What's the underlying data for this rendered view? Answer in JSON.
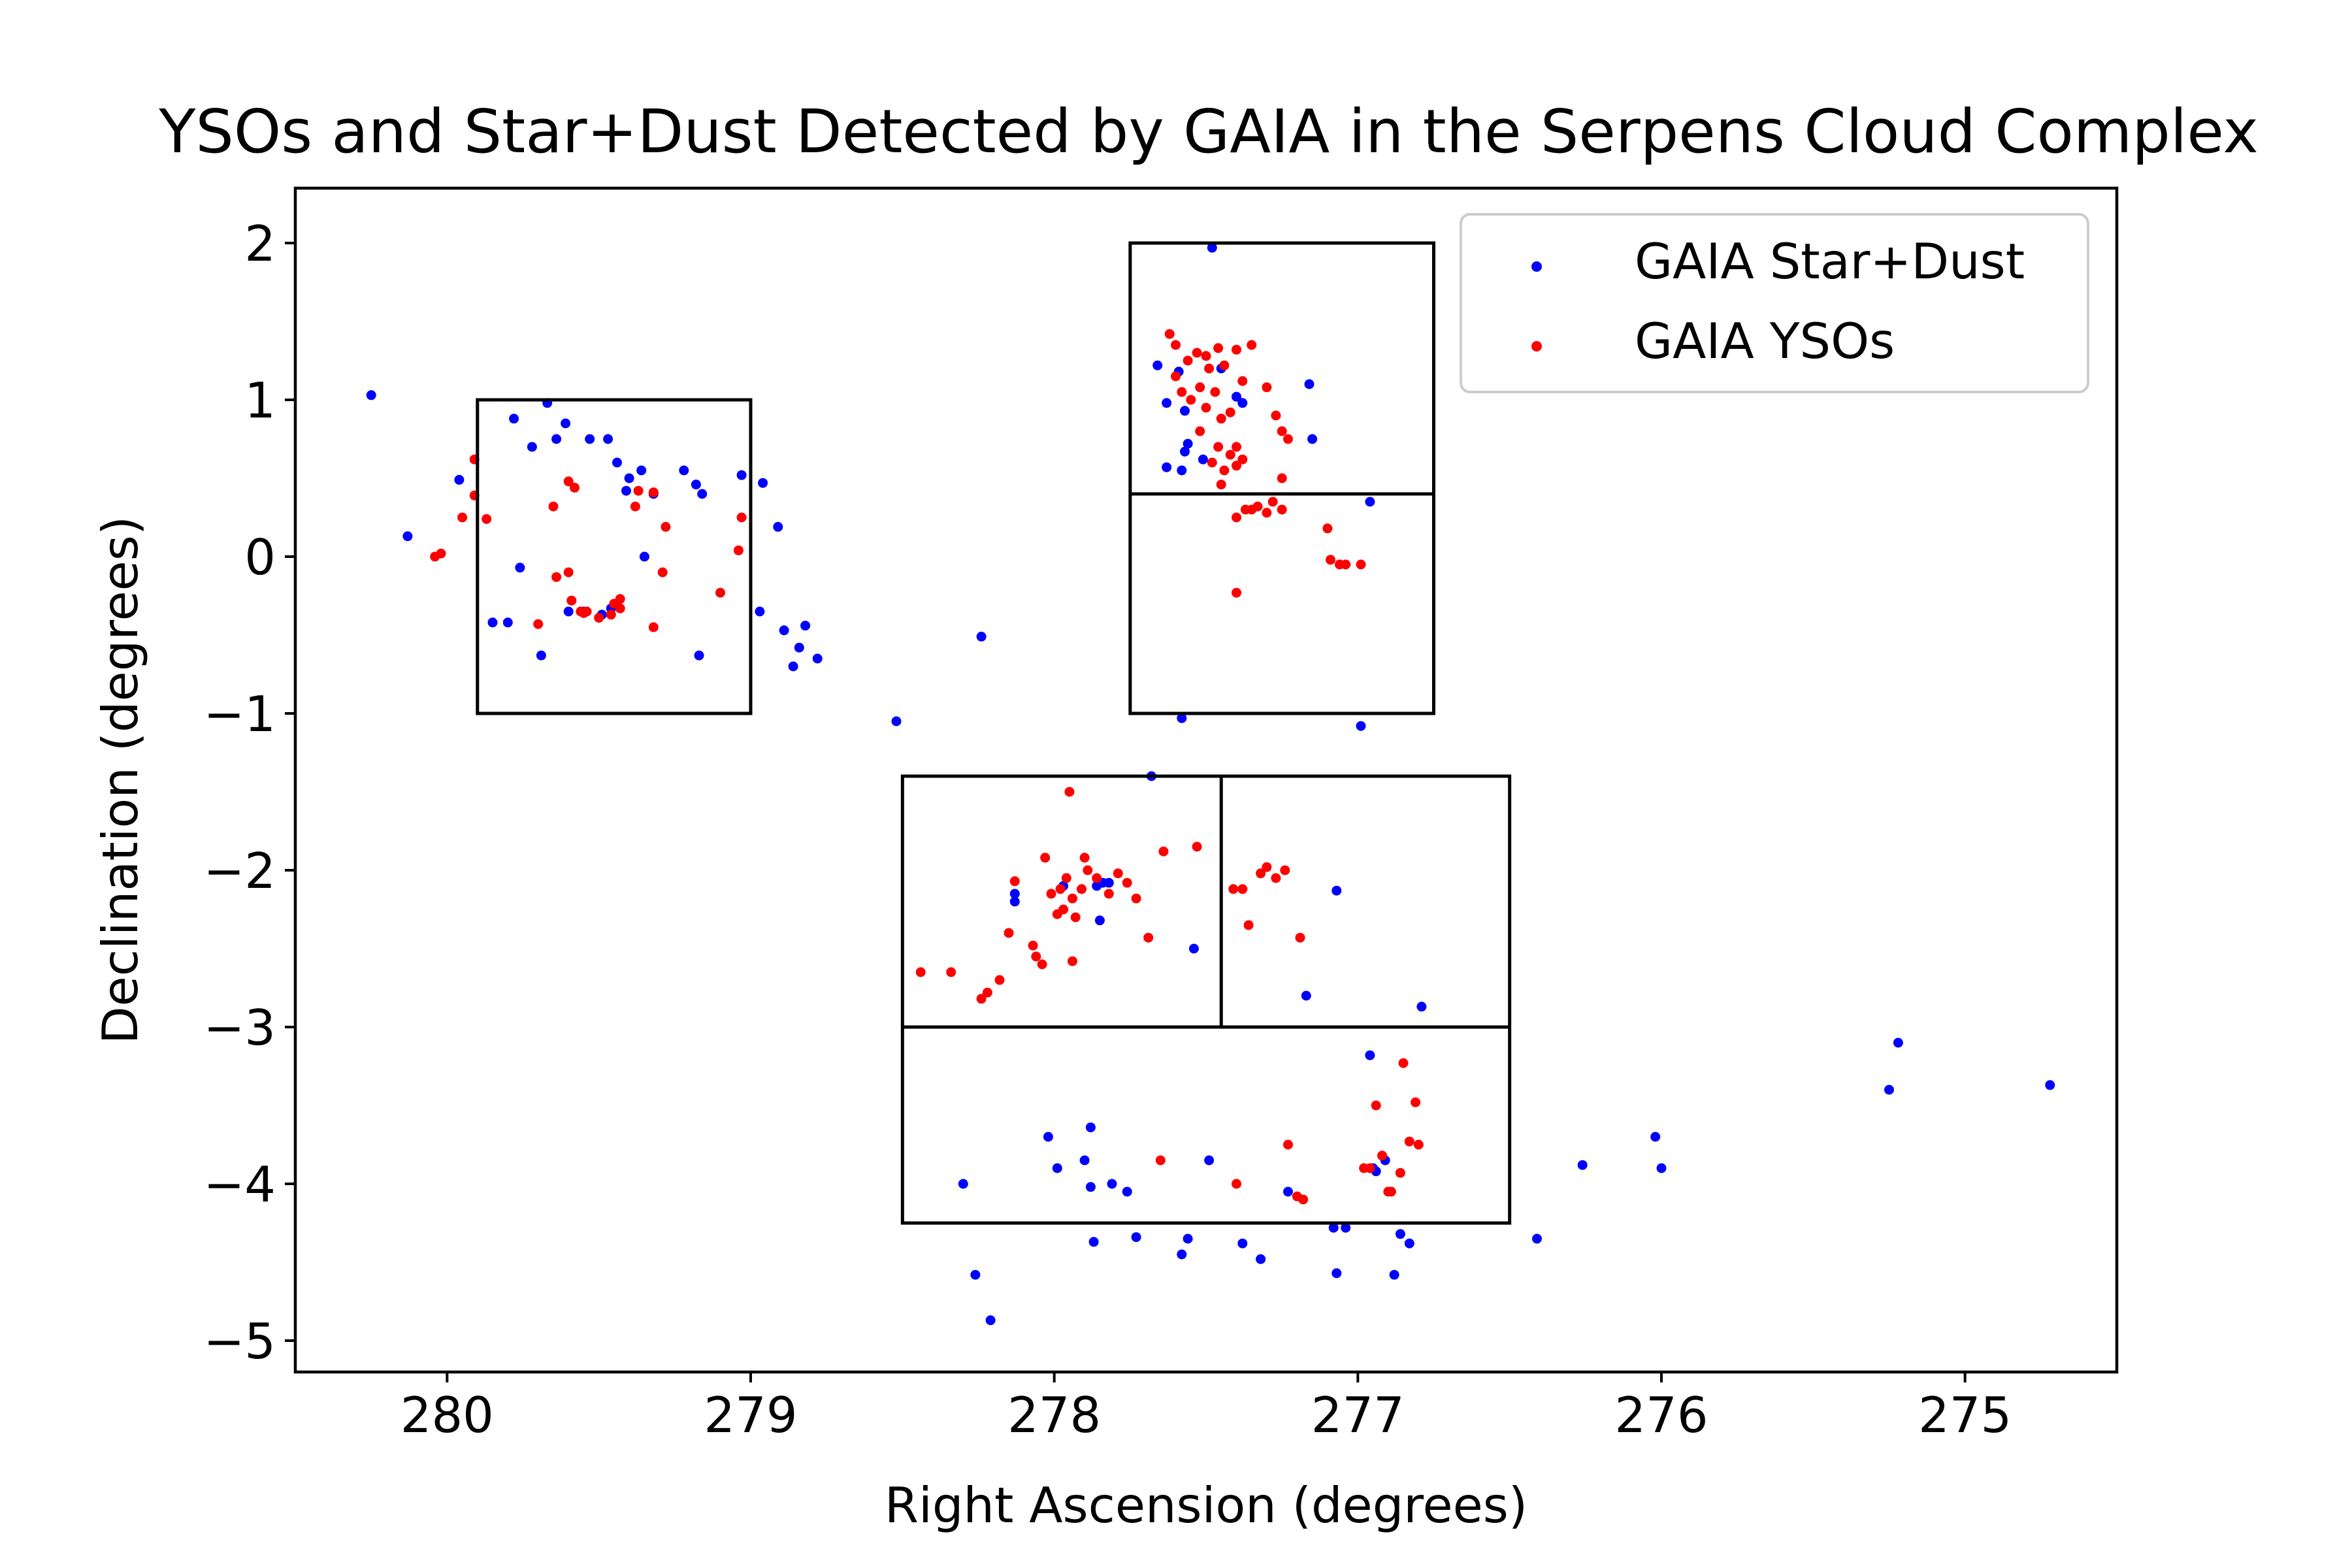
{
  "chart_data": {
    "type": "scatter",
    "title": "YSOs and Star+Dust Detected by GAIA in the Serpens Cloud Complex",
    "xlabel": "Right Ascension (degrees)",
    "ylabel": "Declination (degrees)",
    "xlim": [
      280.5,
      274.5
    ],
    "ylim": [
      -5.2,
      2.35
    ],
    "x_inverted": true,
    "xticks": [
      280,
      279,
      278,
      277,
      276,
      275
    ],
    "yticks": [
      2,
      1,
      0,
      -1,
      -2,
      -3,
      -4,
      -5
    ],
    "xtick_labels": [
      "280",
      "279",
      "278",
      "277",
      "276",
      "275"
    ],
    "ytick_labels": [
      "2",
      "1",
      "0",
      "−1",
      "−2",
      "−3",
      "−4",
      "−5"
    ],
    "grid": false,
    "legend_position": "top-right",
    "series": [
      {
        "name": "GAIA Star+Dust",
        "color": "#0000ff",
        "points": [
          [
            280.25,
            1.03
          ],
          [
            280.13,
            0.13
          ],
          [
            279.96,
            0.49
          ],
          [
            279.78,
            0.88
          ],
          [
            279.72,
            0.7
          ],
          [
            279.67,
            0.98
          ],
          [
            279.64,
            0.75
          ],
          [
            279.61,
            0.85
          ],
          [
            279.53,
            0.75
          ],
          [
            279.47,
            0.75
          ],
          [
            279.44,
            0.6
          ],
          [
            279.41,
            0.42
          ],
          [
            279.4,
            0.5
          ],
          [
            279.36,
            0.55
          ],
          [
            279.32,
            0.4
          ],
          [
            279.22,
            0.55
          ],
          [
            279.18,
            0.46
          ],
          [
            279.16,
            0.4
          ],
          [
            279.03,
            0.52
          ],
          [
            278.96,
            0.47
          ],
          [
            278.91,
            0.19
          ],
          [
            279.85,
            -0.42
          ],
          [
            279.8,
            -0.42
          ],
          [
            279.76,
            -0.07
          ],
          [
            279.69,
            -0.63
          ],
          [
            279.6,
            -0.35
          ],
          [
            279.55,
            -0.35
          ],
          [
            279.49,
            -0.37
          ],
          [
            279.46,
            -0.33
          ],
          [
            279.35,
            0.0
          ],
          [
            279.17,
            -0.63
          ],
          [
            278.97,
            -0.35
          ],
          [
            278.89,
            -0.47
          ],
          [
            278.86,
            -0.7
          ],
          [
            278.84,
            -0.58
          ],
          [
            278.82,
            -0.44
          ],
          [
            278.78,
            -0.65
          ],
          [
            278.52,
            -1.05
          ],
          [
            278.24,
            -0.51
          ],
          [
            277.48,
            1.97
          ],
          [
            277.66,
            1.22
          ],
          [
            277.59,
            1.18
          ],
          [
            277.63,
            0.98
          ],
          [
            277.57,
            0.93
          ],
          [
            277.56,
            0.72
          ],
          [
            277.57,
            0.67
          ],
          [
            277.63,
            0.57
          ],
          [
            277.58,
            0.55
          ],
          [
            277.51,
            0.62
          ],
          [
            277.45,
            1.2
          ],
          [
            277.4,
            1.02
          ],
          [
            277.38,
            0.98
          ],
          [
            277.16,
            1.1
          ],
          [
            277.15,
            0.75
          ],
          [
            276.96,
            0.35
          ],
          [
            277.58,
            -1.03
          ],
          [
            276.99,
            -1.08
          ],
          [
            277.68,
            -1.4
          ],
          [
            277.54,
            -2.5
          ],
          [
            278.13,
            -2.15
          ],
          [
            278.13,
            -2.2
          ],
          [
            277.97,
            -2.1
          ],
          [
            277.86,
            -2.1
          ],
          [
            277.84,
            -2.08
          ],
          [
            277.82,
            -2.08
          ],
          [
            277.85,
            -2.32
          ],
          [
            277.07,
            -2.13
          ],
          [
            277.17,
            -2.8
          ],
          [
            276.79,
            -2.87
          ],
          [
            275.25,
            -3.4
          ],
          [
            275.22,
            -3.1
          ],
          [
            274.72,
            -3.37
          ],
          [
            276.02,
            -3.7
          ],
          [
            276.0,
            -3.9
          ],
          [
            276.26,
            -3.88
          ],
          [
            276.96,
            -3.18
          ],
          [
            276.95,
            -3.9
          ],
          [
            276.94,
            -3.92
          ],
          [
            276.91,
            -3.85
          ],
          [
            278.02,
            -3.7
          ],
          [
            277.99,
            -3.9
          ],
          [
            277.88,
            -3.64
          ],
          [
            277.9,
            -3.85
          ],
          [
            277.88,
            -4.02
          ],
          [
            277.81,
            -4.0
          ],
          [
            277.76,
            -4.05
          ],
          [
            277.49,
            -3.85
          ],
          [
            277.23,
            -4.05
          ],
          [
            278.3,
            -4.0
          ],
          [
            278.26,
            -4.58
          ],
          [
            278.21,
            -4.87
          ],
          [
            277.87,
            -4.37
          ],
          [
            277.73,
            -4.34
          ],
          [
            277.58,
            -4.45
          ],
          [
            277.56,
            -4.35
          ],
          [
            277.38,
            -4.38
          ],
          [
            277.32,
            -4.48
          ],
          [
            277.08,
            -4.28
          ],
          [
            277.07,
            -4.57
          ],
          [
            277.04,
            -4.28
          ],
          [
            276.88,
            -4.58
          ],
          [
            276.86,
            -4.32
          ],
          [
            276.83,
            -4.38
          ],
          [
            276.41,
            -4.35
          ]
        ]
      },
      {
        "name": "GAIA YSOs",
        "color": "#ff0000",
        "points": [
          [
            279.91,
            0.62
          ],
          [
            280.04,
            0.0
          ],
          [
            280.02,
            0.02
          ],
          [
            279.95,
            0.25
          ],
          [
            279.91,
            0.39
          ],
          [
            279.87,
            0.24
          ],
          [
            279.7,
            -0.43
          ],
          [
            279.65,
            0.32
          ],
          [
            279.64,
            -0.13
          ],
          [
            279.6,
            -0.1
          ],
          [
            279.6,
            0.48
          ],
          [
            279.58,
            0.44
          ],
          [
            279.59,
            -0.28
          ],
          [
            279.56,
            -0.35
          ],
          [
            279.55,
            -0.36
          ],
          [
            279.54,
            -0.35
          ],
          [
            279.5,
            -0.39
          ],
          [
            279.46,
            -0.37
          ],
          [
            279.45,
            -0.3
          ],
          [
            279.43,
            -0.33
          ],
          [
            279.43,
            -0.27
          ],
          [
            279.37,
            0.42
          ],
          [
            279.38,
            0.32
          ],
          [
            279.32,
            0.41
          ],
          [
            279.28,
            0.19
          ],
          [
            279.29,
            -0.1
          ],
          [
            279.32,
            -0.45
          ],
          [
            279.1,
            -0.23
          ],
          [
            279.04,
            0.04
          ],
          [
            279.03,
            0.25
          ],
          [
            277.62,
            1.42
          ],
          [
            277.6,
            1.35
          ],
          [
            277.56,
            1.25
          ],
          [
            277.53,
            1.3
          ],
          [
            277.5,
            1.28
          ],
          [
            277.49,
            1.2
          ],
          [
            277.46,
            1.33
          ],
          [
            277.44,
            1.22
          ],
          [
            277.4,
            1.32
          ],
          [
            277.38,
            1.12
          ],
          [
            277.35,
            1.35
          ],
          [
            277.3,
            1.08
          ],
          [
            277.6,
            1.15
          ],
          [
            277.58,
            1.05
          ],
          [
            277.55,
            1.0
          ],
          [
            277.52,
            1.08
          ],
          [
            277.5,
            0.95
          ],
          [
            277.47,
            1.05
          ],
          [
            277.45,
            0.88
          ],
          [
            277.42,
            0.92
          ],
          [
            277.4,
            0.7
          ],
          [
            277.52,
            0.8
          ],
          [
            277.48,
            0.6
          ],
          [
            277.46,
            0.7
          ],
          [
            277.44,
            0.55
          ],
          [
            277.42,
            0.65
          ],
          [
            277.4,
            0.58
          ],
          [
            277.38,
            0.62
          ],
          [
            277.45,
            0.46
          ],
          [
            277.35,
            0.3
          ],
          [
            277.33,
            0.32
          ],
          [
            277.3,
            0.28
          ],
          [
            277.28,
            0.35
          ],
          [
            277.27,
            0.9
          ],
          [
            277.25,
            0.8
          ],
          [
            277.23,
            0.75
          ],
          [
            277.25,
            0.5
          ],
          [
            277.25,
            0.3
          ],
          [
            277.4,
            0.25
          ],
          [
            277.37,
            0.3
          ],
          [
            277.1,
            0.18
          ],
          [
            277.09,
            -0.02
          ],
          [
            277.06,
            -0.05
          ],
          [
            277.04,
            -0.05
          ],
          [
            276.99,
            -0.05
          ],
          [
            277.4,
            -0.23
          ],
          [
            278.44,
            -2.65
          ],
          [
            278.34,
            -2.65
          ],
          [
            278.24,
            -2.82
          ],
          [
            278.22,
            -2.78
          ],
          [
            278.18,
            -2.7
          ],
          [
            278.15,
            -2.4
          ],
          [
            278.13,
            -2.07
          ],
          [
            278.07,
            -2.48
          ],
          [
            278.06,
            -2.55
          ],
          [
            278.04,
            -2.6
          ],
          [
            278.03,
            -1.92
          ],
          [
            278.01,
            -2.15
          ],
          [
            277.99,
            -2.28
          ],
          [
            277.98,
            -2.12
          ],
          [
            277.97,
            -2.25
          ],
          [
            277.96,
            -2.05
          ],
          [
            277.95,
            -1.5
          ],
          [
            277.94,
            -2.18
          ],
          [
            277.94,
            -2.58
          ],
          [
            277.93,
            -2.3
          ],
          [
            277.91,
            -2.12
          ],
          [
            277.9,
            -1.92
          ],
          [
            277.89,
            -2.0
          ],
          [
            277.86,
            -2.05
          ],
          [
            277.82,
            -2.15
          ],
          [
            277.79,
            -2.02
          ],
          [
            277.76,
            -2.08
          ],
          [
            277.73,
            -2.18
          ],
          [
            277.69,
            -2.43
          ],
          [
            277.64,
            -1.88
          ],
          [
            277.53,
            -1.85
          ],
          [
            277.41,
            -2.12
          ],
          [
            277.38,
            -2.12
          ],
          [
            277.36,
            -2.35
          ],
          [
            277.32,
            -2.02
          ],
          [
            277.3,
            -1.98
          ],
          [
            277.27,
            -2.05
          ],
          [
            277.24,
            -2.0
          ],
          [
            277.19,
            -2.43
          ],
          [
            277.65,
            -3.85
          ],
          [
            277.4,
            -4.0
          ],
          [
            277.23,
            -3.75
          ],
          [
            277.2,
            -4.08
          ],
          [
            277.18,
            -4.1
          ],
          [
            276.98,
            -3.9
          ],
          [
            276.96,
            -3.9
          ],
          [
            276.94,
            -3.5
          ],
          [
            276.92,
            -3.82
          ],
          [
            276.9,
            -4.05
          ],
          [
            276.89,
            -4.05
          ],
          [
            276.85,
            -3.23
          ],
          [
            276.81,
            -3.48
          ],
          [
            276.86,
            -3.93
          ],
          [
            276.83,
            -3.73
          ],
          [
            276.8,
            -3.75
          ]
        ]
      }
    ],
    "regions": [
      {
        "x": [
          279.9,
          279.0
        ],
        "y": [
          -1.0,
          1.0
        ],
        "dividers_y": []
      },
      {
        "x": [
          277.75,
          276.75
        ],
        "y": [
          -1.0,
          2.0
        ],
        "dividers_y": [
          0.4
        ]
      },
      {
        "x": [
          278.5,
          276.5
        ],
        "y": [
          -4.25,
          -1.4
        ],
        "dividers_y": [
          -3.0
        ],
        "dividers_x_upper": [
          277.45
        ]
      }
    ]
  }
}
